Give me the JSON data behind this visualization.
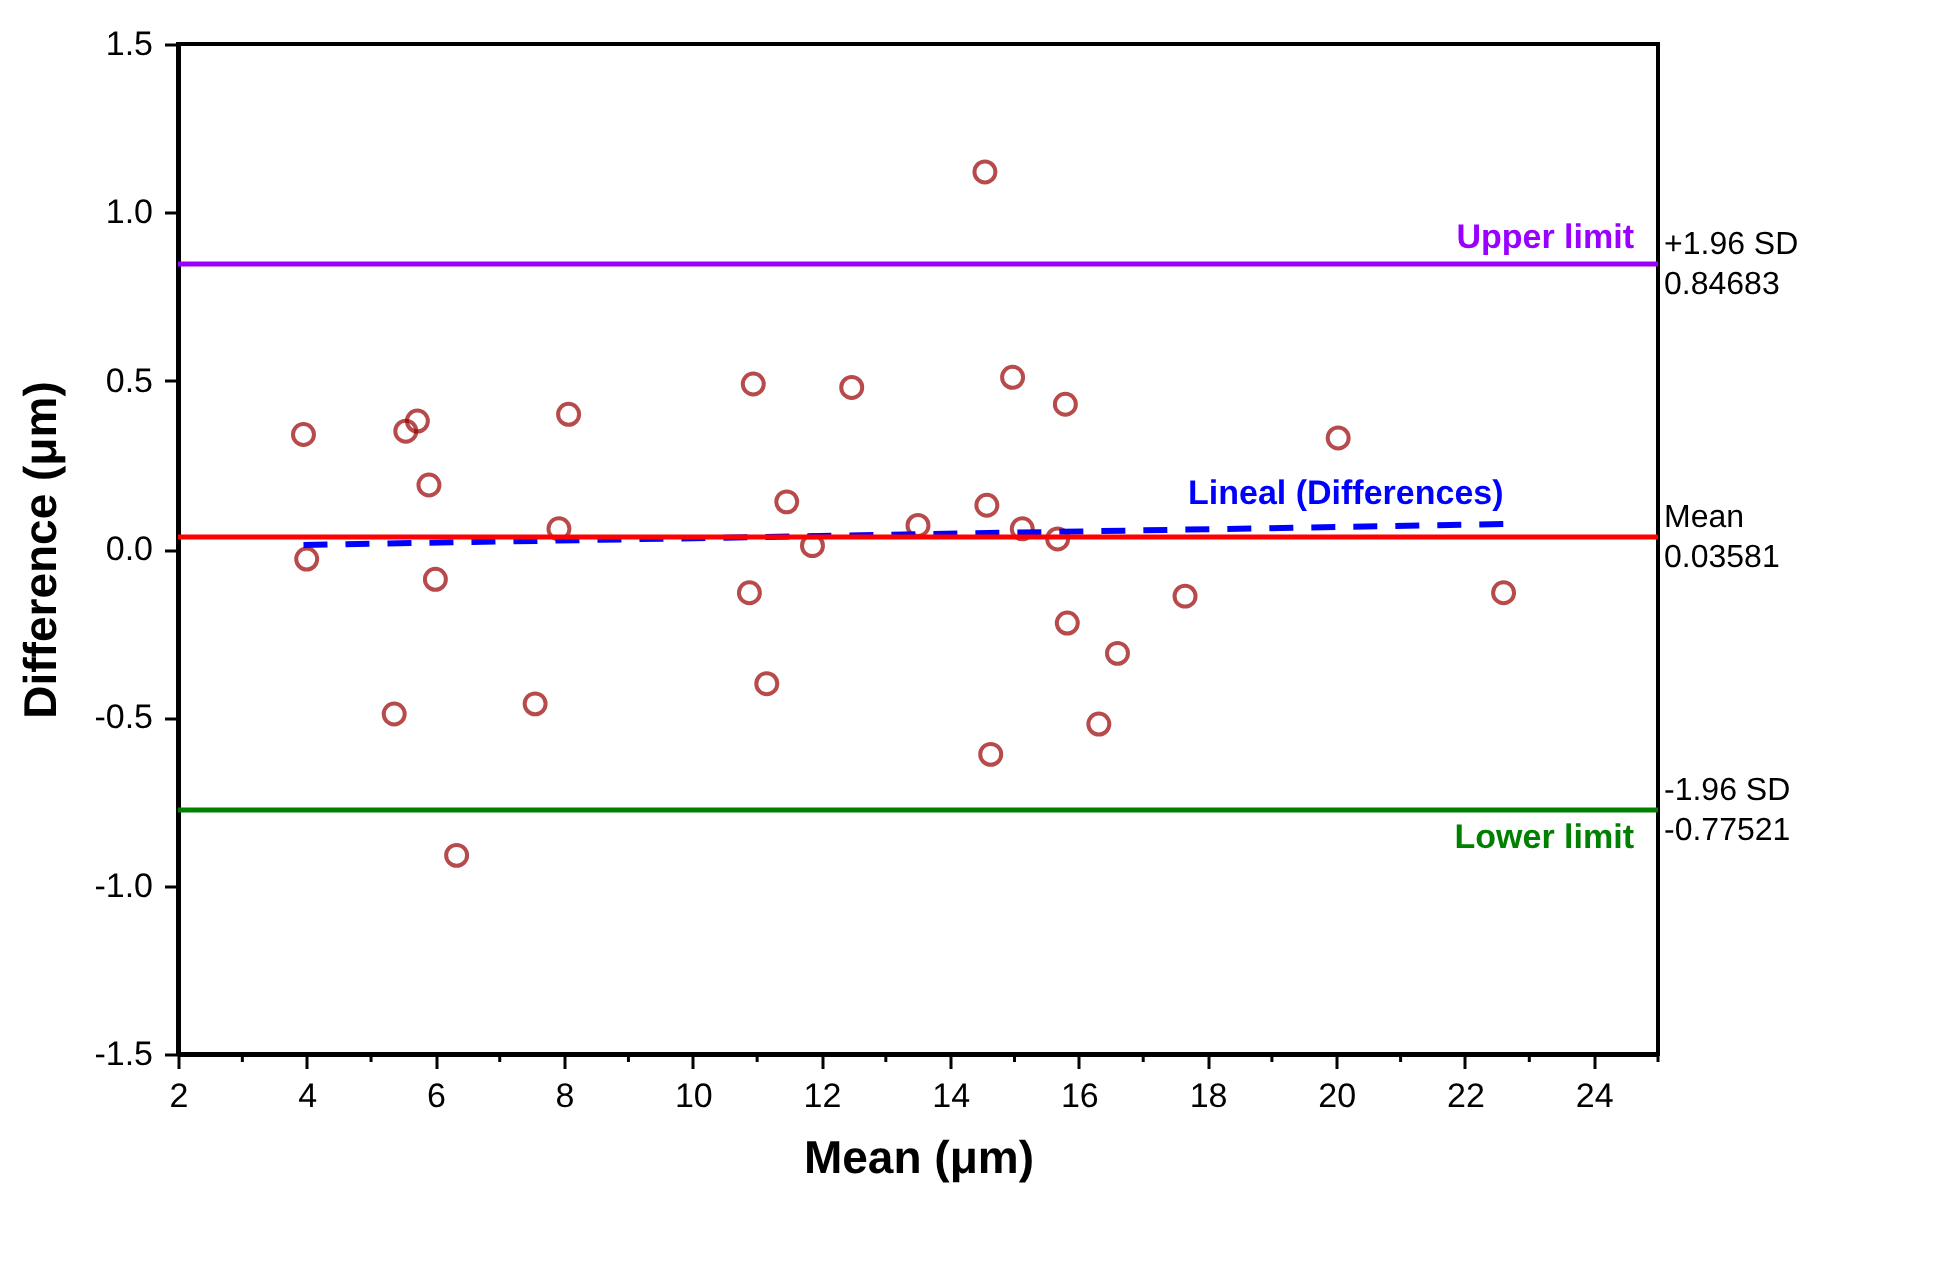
{
  "chart_data": {
    "type": "scatter",
    "xlabel": "Mean (μm)",
    "ylabel": "Difference (μm)",
    "xlim": [
      2,
      25
    ],
    "ylim": [
      -1.5,
      1.5
    ],
    "xticks": [
      2,
      {
        "value": 3,
        "label": null
      },
      4,
      {
        "value": 5,
        "label": null
      },
      6,
      {
        "value": 7,
        "label": null
      },
      8,
      {
        "value": 9,
        "label": null
      },
      10,
      {
        "value": 11,
        "label": null
      },
      12,
      {
        "value": 13,
        "label": null
      },
      14,
      {
        "value": 15,
        "label": null
      },
      16,
      {
        "value": 17,
        "label": null
      },
      18,
      {
        "value": 19,
        "label": null
      },
      20,
      {
        "value": 21,
        "label": null
      },
      22,
      {
        "value": 23,
        "label": null
      },
      24,
      {
        "value": 25,
        "label": null
      }
    ],
    "yticks": [
      {
        "value": -1.5,
        "label": "-1.5"
      },
      {
        "value": -1,
        "label": "-1.0"
      },
      {
        "value": -0.5,
        "label": "-0.5"
      },
      {
        "value": 0,
        "label": "0.0"
      },
      {
        "value": 0.5,
        "label": "0.5"
      },
      {
        "value": 1,
        "label": "1.0"
      },
      {
        "value": 1.5,
        "label": "1.5"
      }
    ],
    "grid": false,
    "series": [
      {
        "marker": "circle",
        "color": "#990000",
        "x": [
          3.95,
          4.0,
          5.54,
          5.72,
          5.9,
          6.0,
          5.36,
          6.33,
          7.55,
          7.92,
          8.07,
          10.94,
          10.88,
          11.15,
          11.46,
          11.86,
          12.47,
          13.5,
          14.54,
          14.57,
          14.63,
          14.97,
          15.12,
          15.67,
          15.79,
          15.82,
          16.31,
          16.6,
          17.65,
          20.03,
          22.6
        ],
        "values": [
          0.34,
          -0.03,
          0.35,
          0.38,
          0.19,
          -0.09,
          -0.49,
          -0.91,
          -0.46,
          0.06,
          0.4,
          0.49,
          -0.13,
          -0.4,
          0.14,
          0.01,
          0.48,
          0.07,
          1.12,
          0.13,
          -0.61,
          0.51,
          0.06,
          0.03,
          0.43,
          -0.22,
          -0.52,
          -0.31,
          -0.14,
          0.33,
          -0.13
        ]
      },
      {
        "type": "line",
        "name": "Lineal (Differences)",
        "color": "#0000ff",
        "line_style": "dashed",
        "x": [
          3.95,
          22.6
        ],
        "values": [
          0.012,
          0.074
        ]
      }
    ],
    "ref_lines": [
      {
        "axis": "y",
        "value": 0.84683,
        "label": "Upper limit",
        "color": "#9900ff"
      },
      {
        "axis": "y",
        "value": 0.03581,
        "label": null,
        "color": "#ff0000"
      },
      {
        "axis": "y",
        "value": -0.77521,
        "label": "Lower limit",
        "color": "#008000"
      }
    ],
    "annotations": [
      "+1.96 SD",
      "0.84683",
      "Mean",
      "0.03581",
      "-1.96 SD",
      "-0.77521"
    ]
  }
}
